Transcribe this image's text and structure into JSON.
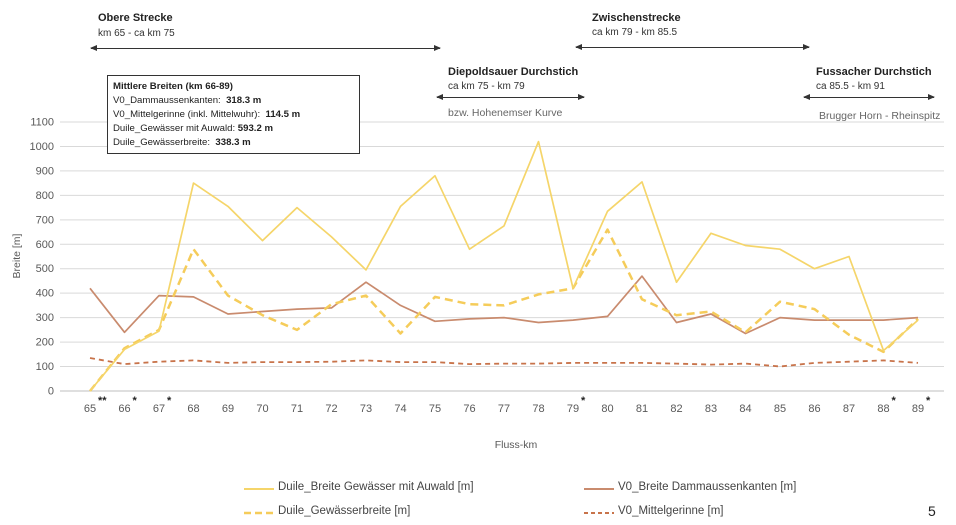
{
  "sections": {
    "obere": {
      "title": "Obere Strecke",
      "sub": "km 65 - ca km 75"
    },
    "diepoldsauer": {
      "title": "Diepoldsauer Durchstich",
      "sub": "ca km 75 - km 79",
      "note": "bzw. Hohenemser Kurve"
    },
    "zwischen": {
      "title": "Zwischenstrecke",
      "sub": "ca km 79 - km 85.5"
    },
    "fussacher": {
      "title": "Fussacher Durchstich",
      "sub": "ca 85.5 - km 91",
      "note": "Brugger Horn - Rheinspitz"
    }
  },
  "infobox": {
    "title": "Mittlere Breiten (km 66-89)",
    "rows": [
      {
        "label": "V0_Dammaussenkanten:",
        "value": "318.3 m"
      },
      {
        "label": "V0_Mittelgerinne (inkl. Mittelwuhr):",
        "value": "114.5 m"
      },
      {
        "label": "Duile_Gewässer mit Auwald:",
        "value": "593.2 m"
      },
      {
        "label": "Duile_Gewässerbreite:",
        "value": "338.3 m"
      }
    ]
  },
  "page_number": "5",
  "colors": {
    "auwald": "#F5D56A",
    "dammaussen": "#C98B6E",
    "gewaesserbreite": "#F5CC5A",
    "mittelgerinne": "#C8734A",
    "grid": "#D9D9D9",
    "axis_text": "#595959"
  },
  "chart_data": {
    "type": "line",
    "xlabel": "Fluss-km",
    "ylabel": "Breite [m]",
    "ylim": [
      0,
      1100
    ],
    "yticks": [
      0,
      100,
      200,
      300,
      400,
      500,
      600,
      700,
      800,
      900,
      1000,
      1100
    ],
    "grid": true,
    "legend_position": "bottom",
    "categories": [
      "65",
      "66",
      "67",
      "68",
      "69",
      "70",
      "71",
      "72",
      "73",
      "74",
      "75",
      "76",
      "77",
      "78",
      "79",
      "80",
      "81",
      "82",
      "83",
      "84",
      "85",
      "86",
      "87",
      "88",
      "89"
    ],
    "tick_marks": [
      "**",
      "*",
      "*",
      "",
      "",
      "",
      "",
      "",
      "",
      "",
      "",
      "",
      "",
      "",
      "*",
      "",
      "",
      "",
      "",
      "",
      "",
      "",
      "",
      "*",
      "*"
    ],
    "series": [
      {
        "name": "Duile_Breite Gewässer mit Auwald [m]",
        "style": "solid",
        "color": "#F5D56A",
        "values": [
          0,
          170,
          245,
          850,
          755,
          615,
          750,
          630,
          495,
          755,
          880,
          580,
          675,
          1020,
          420,
          735,
          855,
          445,
          645,
          595,
          580,
          500,
          550,
          165,
          290
        ]
      },
      {
        "name": "V0_Breite Dammaussenkanten [m]",
        "style": "solid",
        "color": "#C98B6E",
        "values": [
          420,
          240,
          390,
          385,
          315,
          325,
          335,
          340,
          445,
          350,
          285,
          295,
          300,
          280,
          290,
          305,
          470,
          280,
          315,
          235,
          300,
          290,
          290,
          290,
          300
        ]
      },
      {
        "name": "Duile_Gewässerbreite [m]",
        "style": "dashed",
        "color": "#F5CC5A",
        "values": [
          0,
          175,
          250,
          580,
          390,
          310,
          250,
          355,
          390,
          235,
          385,
          355,
          350,
          395,
          420,
          660,
          375,
          310,
          325,
          240,
          365,
          335,
          230,
          160,
          295
        ]
      },
      {
        "name": "V0_Mittelgerinne [m]",
        "style": "dashed",
        "color": "#C8734A",
        "values": [
          135,
          110,
          120,
          125,
          115,
          118,
          118,
          120,
          125,
          118,
          118,
          110,
          112,
          112,
          115,
          115,
          115,
          112,
          108,
          112,
          100,
          115,
          120,
          125,
          115
        ]
      }
    ]
  }
}
